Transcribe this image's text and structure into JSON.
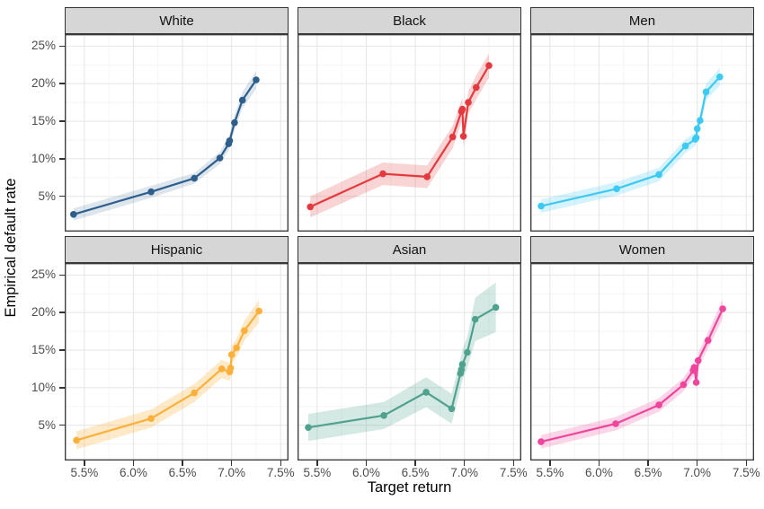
{
  "figure": {
    "x_axis_title": "Target return",
    "y_axis_title": "Empirical default rate"
  },
  "theme": {
    "strip_bg": "#D6D6D6",
    "panel_bg": "#FFFFFF",
    "panel_border": "#333333",
    "grid_major": "#E7E7E7",
    "grid_minor": "#F3F3F3",
    "tick_text": "#4D4D4D",
    "title_text": "#000000"
  },
  "chart_data": {
    "type": "line",
    "title": "",
    "xlabel": "Target return",
    "ylabel": "Empirical default rate",
    "legend": "none",
    "grid": "on",
    "facet_layout": [
      [
        "White",
        "Black",
        "Men"
      ],
      [
        "Hispanic",
        "Asian",
        "Women"
      ]
    ],
    "axes": {
      "x_domain": [
        5.3,
        7.58
      ],
      "y_domain": [
        0.3,
        26.6
      ],
      "x_tick_values": [
        5.5,
        6.0,
        6.5,
        7.0,
        7.5
      ],
      "x_tick_labels": [
        "5.5%",
        "6.0%",
        "6.5%",
        "7.0%",
        "7.5%"
      ],
      "y_tick_values": [
        5,
        10,
        15,
        20,
        25
      ],
      "y_tick_labels": [
        "5%",
        "10%",
        "15%",
        "20%",
        "25%"
      ],
      "x_minor": [
        5.75,
        6.25,
        6.75,
        7.25
      ],
      "y_minor": [
        2.5,
        7.5,
        12.5,
        17.5,
        22.5
      ]
    },
    "facets": [
      {
        "label": "White",
        "color": "#2E5F8C",
        "ribbon_opacity": 0.16,
        "x": [
          5.39,
          6.18,
          6.62,
          6.88,
          6.97,
          6.98,
          7.03,
          7.11,
          7.25
        ],
        "y": [
          2.6,
          5.6,
          7.4,
          10.1,
          12.0,
          12.4,
          14.8,
          17.8,
          20.5
        ],
        "lo": [
          1.8,
          4.8,
          6.7,
          9.3,
          11.1,
          11.5,
          13.8,
          16.7,
          19.3
        ],
        "hi": [
          3.4,
          6.4,
          8.1,
          10.9,
          12.9,
          13.3,
          15.8,
          18.9,
          21.7
        ]
      },
      {
        "label": "Black",
        "color": "#E43A3F",
        "ribbon_opacity": 0.22,
        "x": [
          5.43,
          6.17,
          6.62,
          6.88,
          6.97,
          6.98,
          6.99,
          7.04,
          7.12,
          7.25
        ],
        "y": [
          3.6,
          8.0,
          7.6,
          12.9,
          16.3,
          16.6,
          13.0,
          17.5,
          19.5,
          22.4
        ],
        "lo": [
          2.2,
          6.5,
          6.1,
          11.4,
          14.8,
          15.1,
          11.5,
          16.0,
          17.9,
          20.8
        ],
        "hi": [
          5.0,
          9.5,
          9.1,
          14.4,
          17.8,
          18.1,
          14.5,
          19.0,
          21.1,
          24.0
        ]
      },
      {
        "label": "Men",
        "color": "#3EC9F2",
        "ribbon_opacity": 0.22,
        "x": [
          5.41,
          6.18,
          6.61,
          6.88,
          6.98,
          6.99,
          7.0,
          7.03,
          7.09,
          7.23
        ],
        "y": [
          3.7,
          6.0,
          7.9,
          11.7,
          12.6,
          12.8,
          14.0,
          15.1,
          18.9,
          20.9
        ],
        "lo": [
          2.8,
          5.1,
          7.0,
          10.8,
          11.7,
          11.9,
          13.1,
          14.2,
          17.8,
          19.7
        ],
        "hi": [
          4.6,
          6.9,
          8.8,
          12.6,
          13.5,
          13.7,
          14.9,
          16.0,
          20.0,
          22.1
        ]
      },
      {
        "label": "Hispanic",
        "color": "#FBB03B",
        "ribbon_opacity": 0.28,
        "x": [
          5.42,
          6.18,
          6.62,
          6.9,
          6.98,
          6.99,
          7.0,
          7.05,
          7.13,
          7.28
        ],
        "y": [
          3.0,
          5.9,
          9.3,
          12.5,
          12.1,
          12.6,
          14.4,
          15.3,
          17.6,
          20.2
        ],
        "lo": [
          1.8,
          4.7,
          8.1,
          11.3,
          10.9,
          11.4,
          13.2,
          14.1,
          16.3,
          18.7
        ],
        "hi": [
          4.2,
          7.1,
          10.5,
          13.7,
          13.3,
          13.8,
          15.6,
          16.5,
          18.9,
          21.7
        ]
      },
      {
        "label": "Asian",
        "color": "#4FA28E",
        "ribbon_opacity": 0.24,
        "x": [
          5.41,
          6.18,
          6.61,
          6.87,
          6.96,
          6.97,
          6.98,
          7.03,
          7.11,
          7.32
        ],
        "y": [
          4.7,
          6.3,
          9.4,
          7.2,
          11.9,
          12.4,
          13.1,
          14.7,
          19.1,
          20.7
        ],
        "lo": [
          2.9,
          4.5,
          7.4,
          5.2,
          9.9,
          10.4,
          11.1,
          12.6,
          16.2,
          17.4
        ],
        "hi": [
          6.5,
          8.1,
          11.4,
          9.2,
          13.9,
          14.4,
          15.1,
          16.8,
          22.0,
          24.0
        ]
      },
      {
        "label": "Women",
        "color": "#EF459D",
        "ribbon_opacity": 0.22,
        "x": [
          5.41,
          6.17,
          6.61,
          6.86,
          6.96,
          6.97,
          6.99,
          7.01,
          7.11,
          7.26
        ],
        "y": [
          2.8,
          5.2,
          7.7,
          10.4,
          12.3,
          12.7,
          10.7,
          13.6,
          16.3,
          20.5
        ],
        "lo": [
          1.9,
          4.3,
          6.8,
          9.5,
          11.4,
          11.8,
          9.8,
          12.6,
          15.2,
          19.2
        ],
        "hi": [
          3.7,
          6.1,
          8.6,
          11.3,
          13.2,
          13.6,
          11.6,
          14.6,
          17.4,
          21.8
        ]
      }
    ]
  }
}
